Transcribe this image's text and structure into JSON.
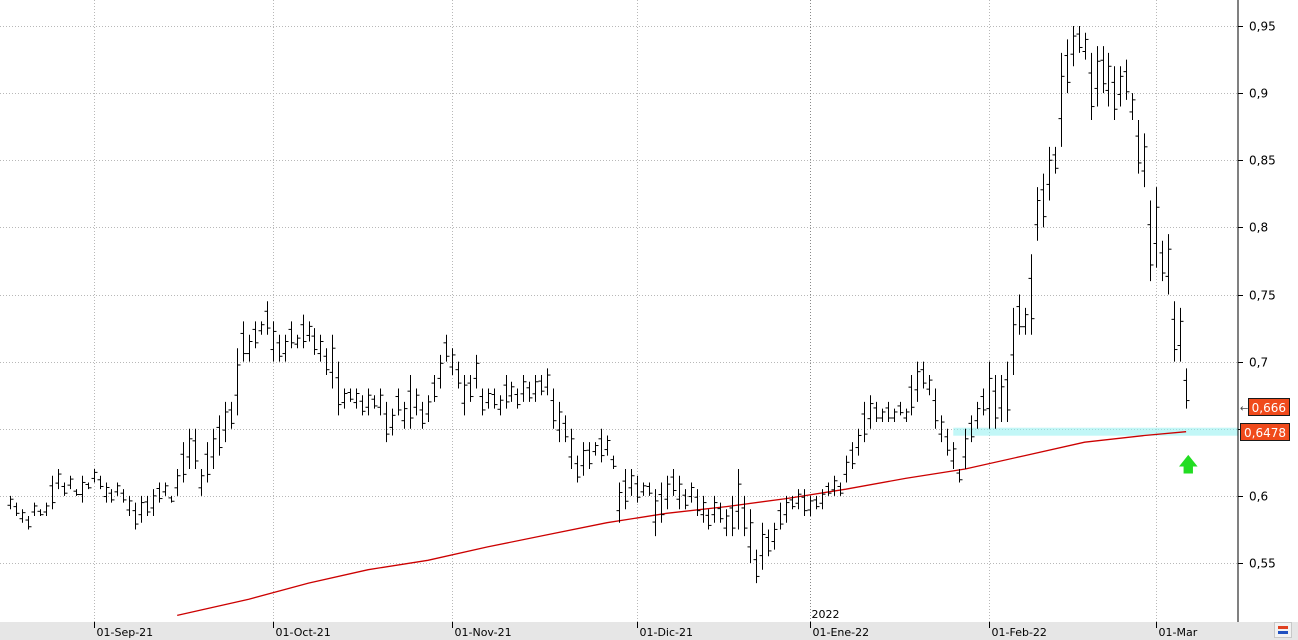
{
  "colors": {
    "background": "#ffffff",
    "grid": "#b8b8b8",
    "bars": "#000000",
    "moving_average": "#cc0000",
    "support_band": "#8ff0f0",
    "price_tag_bg": "#f04a1b",
    "arrow": "#22dd22",
    "axis_strip": "#e6e6e6"
  },
  "year_marker": "2022",
  "price_tags": [
    {
      "label": "0,666",
      "value": 0.666
    },
    {
      "label": "0,6478",
      "value": 0.6478
    }
  ],
  "arrow_icon": "up-arrow-icon",
  "corner_icon": "chart-settings-icon",
  "chart_data": {
    "type": "ohlc",
    "title": "",
    "xlabel": "",
    "ylabel": "",
    "ylim": [
      0.51,
      0.96
    ],
    "y_ticks": [
      {
        "v": 0.95,
        "label": "0,95"
      },
      {
        "v": 0.9,
        "label": "0,9"
      },
      {
        "v": 0.85,
        "label": "0,85"
      },
      {
        "v": 0.8,
        "label": "0,8"
      },
      {
        "v": 0.75,
        "label": "0,75"
      },
      {
        "v": 0.7,
        "label": "0,7"
      },
      {
        "v": 0.65,
        "label": ""
      },
      {
        "v": 0.6,
        "label": "0,6"
      },
      {
        "v": 0.55,
        "label": "0,55"
      }
    ],
    "x_ticks": [
      {
        "bar": 14,
        "label": "01-Sep-21"
      },
      {
        "bar": 44,
        "label": "01-Oct-21"
      },
      {
        "bar": 74,
        "label": "01-Nov-21"
      },
      {
        "bar": 105,
        "label": "01-Dic-21"
      },
      {
        "bar": 134,
        "label": "01-Ene-22"
      },
      {
        "bar": 164,
        "label": "01-Feb-22"
      },
      {
        "bar": 192,
        "label": "01-Mar"
      }
    ],
    "year_separator_bar": 134,
    "support_level": 0.6478,
    "support_from_bar": 158,
    "moving_average": [
      [
        28,
        0.511
      ],
      [
        40,
        0.523
      ],
      [
        50,
        0.535
      ],
      [
        60,
        0.545
      ],
      [
        70,
        0.552
      ],
      [
        80,
        0.562
      ],
      [
        90,
        0.571
      ],
      [
        100,
        0.58
      ],
      [
        110,
        0.587
      ],
      [
        120,
        0.592
      ],
      [
        130,
        0.598
      ],
      [
        140,
        0.605
      ],
      [
        150,
        0.613
      ],
      [
        160,
        0.62
      ],
      [
        170,
        0.63
      ],
      [
        180,
        0.64
      ],
      [
        190,
        0.645
      ],
      [
        197,
        0.6478
      ]
    ],
    "bars": [
      [
        0.6,
        0.59
      ],
      [
        0.595,
        0.585
      ],
      [
        0.59,
        0.58
      ],
      [
        0.585,
        0.575
      ],
      [
        0.595,
        0.585
      ],
      [
        0.59,
        0.585
      ],
      [
        0.595,
        0.585
      ],
      [
        0.615,
        0.59
      ],
      [
        0.62,
        0.605
      ],
      [
        0.61,
        0.6
      ],
      [
        0.615,
        0.605
      ],
      [
        0.605,
        0.6
      ],
      [
        0.615,
        0.595
      ],
      [
        0.61,
        0.605
      ],
      [
        0.62,
        0.61
      ],
      [
        0.615,
        0.605
      ],
      [
        0.61,
        0.595
      ],
      [
        0.605,
        0.595
      ],
      [
        0.61,
        0.6
      ],
      [
        0.605,
        0.595
      ],
      [
        0.6,
        0.585
      ],
      [
        0.595,
        0.575
      ],
      [
        0.6,
        0.58
      ],
      [
        0.6,
        0.585
      ],
      [
        0.605,
        0.585
      ],
      [
        0.61,
        0.595
      ],
      [
        0.61,
        0.6
      ],
      [
        0.6,
        0.595
      ],
      [
        0.62,
        0.6
      ],
      [
        0.64,
        0.61
      ],
      [
        0.65,
        0.62
      ],
      [
        0.65,
        0.62
      ],
      [
        0.62,
        0.6
      ],
      [
        0.64,
        0.61
      ],
      [
        0.65,
        0.62
      ],
      [
        0.66,
        0.63
      ],
      [
        0.67,
        0.64
      ],
      [
        0.67,
        0.65
      ],
      [
        0.71,
        0.66
      ],
      [
        0.73,
        0.7
      ],
      [
        0.72,
        0.7
      ],
      [
        0.73,
        0.71
      ],
      [
        0.73,
        0.72
      ],
      [
        0.745,
        0.72
      ],
      [
        0.73,
        0.7
      ],
      [
        0.72,
        0.7
      ],
      [
        0.72,
        0.7
      ],
      [
        0.73,
        0.71
      ],
      [
        0.72,
        0.71
      ],
      [
        0.735,
        0.71
      ],
      [
        0.73,
        0.715
      ],
      [
        0.725,
        0.705
      ],
      [
        0.72,
        0.7
      ],
      [
        0.71,
        0.69
      ],
      [
        0.72,
        0.68
      ],
      [
        0.7,
        0.66
      ],
      [
        0.68,
        0.665
      ],
      [
        0.68,
        0.67
      ],
      [
        0.68,
        0.665
      ],
      [
        0.675,
        0.66
      ],
      [
        0.68,
        0.66
      ],
      [
        0.675,
        0.665
      ],
      [
        0.68,
        0.66
      ],
      [
        0.67,
        0.64
      ],
      [
        0.665,
        0.645
      ],
      [
        0.68,
        0.66
      ],
      [
        0.67,
        0.65
      ],
      [
        0.69,
        0.65
      ],
      [
        0.68,
        0.66
      ],
      [
        0.67,
        0.65
      ],
      [
        0.675,
        0.655
      ],
      [
        0.69,
        0.67
      ],
      [
        0.705,
        0.68
      ],
      [
        0.72,
        0.7
      ],
      [
        0.71,
        0.69
      ],
      [
        0.7,
        0.68
      ],
      [
        0.69,
        0.66
      ],
      [
        0.69,
        0.67
      ],
      [
        0.705,
        0.68
      ],
      [
        0.68,
        0.66
      ],
      [
        0.68,
        0.665
      ],
      [
        0.68,
        0.665
      ],
      [
        0.675,
        0.66
      ],
      [
        0.69,
        0.665
      ],
      [
        0.685,
        0.67
      ],
      [
        0.68,
        0.665
      ],
      [
        0.69,
        0.67
      ],
      [
        0.685,
        0.67
      ],
      [
        0.69,
        0.67
      ],
      [
        0.69,
        0.675
      ],
      [
        0.695,
        0.675
      ],
      [
        0.68,
        0.65
      ],
      [
        0.67,
        0.64
      ],
      [
        0.66,
        0.64
      ],
      [
        0.65,
        0.62
      ],
      [
        0.63,
        0.61
      ],
      [
        0.64,
        0.615
      ],
      [
        0.64,
        0.62
      ],
      [
        0.64,
        0.63
      ],
      [
        0.65,
        0.625
      ],
      [
        0.645,
        0.63
      ],
      [
        0.63,
        0.62
      ],
      [
        0.61,
        0.58
      ],
      [
        0.62,
        0.59
      ],
      [
        0.62,
        0.6
      ],
      [
        0.615,
        0.595
      ],
      [
        0.61,
        0.6
      ],
      [
        0.61,
        0.6
      ],
      [
        0.605,
        0.57
      ],
      [
        0.61,
        0.58
      ],
      [
        0.615,
        0.59
      ],
      [
        0.62,
        0.6
      ],
      [
        0.615,
        0.59
      ],
      [
        0.605,
        0.59
      ],
      [
        0.61,
        0.595
      ],
      [
        0.605,
        0.585
      ],
      [
        0.6,
        0.58
      ],
      [
        0.59,
        0.575
      ],
      [
        0.6,
        0.58
      ],
      [
        0.595,
        0.58
      ],
      [
        0.59,
        0.57
      ],
      [
        0.6,
        0.57
      ],
      [
        0.62,
        0.575
      ],
      [
        0.6,
        0.57
      ],
      [
        0.59,
        0.55
      ],
      [
        0.56,
        0.535
      ],
      [
        0.58,
        0.545
      ],
      [
        0.575,
        0.555
      ],
      [
        0.58,
        0.56
      ],
      [
        0.595,
        0.575
      ],
      [
        0.6,
        0.58
      ],
      [
        0.6,
        0.59
      ],
      [
        0.605,
        0.59
      ],
      [
        0.605,
        0.585
      ],
      [
        0.6,
        0.585
      ],
      [
        0.6,
        0.59
      ],
      [
        0.605,
        0.59
      ],
      [
        0.61,
        0.6
      ],
      [
        0.615,
        0.6
      ],
      [
        0.61,
        0.6
      ],
      [
        0.63,
        0.61
      ],
      [
        0.64,
        0.62
      ],
      [
        0.65,
        0.63
      ],
      [
        0.67,
        0.64
      ],
      [
        0.675,
        0.65
      ],
      [
        0.67,
        0.655
      ],
      [
        0.665,
        0.655
      ],
      [
        0.67,
        0.655
      ],
      [
        0.665,
        0.655
      ],
      [
        0.67,
        0.66
      ],
      [
        0.665,
        0.655
      ],
      [
        0.69,
        0.66
      ],
      [
        0.7,
        0.67
      ],
      [
        0.7,
        0.68
      ],
      [
        0.69,
        0.675
      ],
      [
        0.68,
        0.65
      ],
      [
        0.66,
        0.64
      ],
      [
        0.65,
        0.63
      ],
      [
        0.64,
        0.62
      ],
      [
        0.62,
        0.61
      ],
      [
        0.65,
        0.62
      ],
      [
        0.66,
        0.64
      ],
      [
        0.67,
        0.65
      ],
      [
        0.68,
        0.66
      ],
      [
        0.7,
        0.65
      ],
      [
        0.69,
        0.65
      ],
      [
        0.69,
        0.655
      ],
      [
        0.7,
        0.655
      ],
      [
        0.74,
        0.69
      ],
      [
        0.75,
        0.72
      ],
      [
        0.74,
        0.72
      ],
      [
        0.78,
        0.72
      ],
      [
        0.83,
        0.79
      ],
      [
        0.84,
        0.8
      ],
      [
        0.86,
        0.82
      ],
      [
        0.86,
        0.84
      ],
      [
        0.93,
        0.86
      ],
      [
        0.94,
        0.9
      ],
      [
        0.95,
        0.92
      ],
      [
        0.95,
        0.93
      ],
      [
        0.945,
        0.925
      ],
      [
        0.93,
        0.88
      ],
      [
        0.935,
        0.89
      ],
      [
        0.935,
        0.9
      ],
      [
        0.93,
        0.89
      ],
      [
        0.92,
        0.88
      ],
      [
        0.92,
        0.89
      ],
      [
        0.925,
        0.895
      ],
      [
        0.9,
        0.88
      ],
      [
        0.88,
        0.84
      ],
      [
        0.87,
        0.83
      ],
      [
        0.82,
        0.76
      ],
      [
        0.83,
        0.77
      ],
      [
        0.79,
        0.76
      ],
      [
        0.795,
        0.75
      ],
      [
        0.745,
        0.7
      ],
      [
        0.74,
        0.7
      ],
      [
        0.695,
        0.665
      ]
    ]
  }
}
